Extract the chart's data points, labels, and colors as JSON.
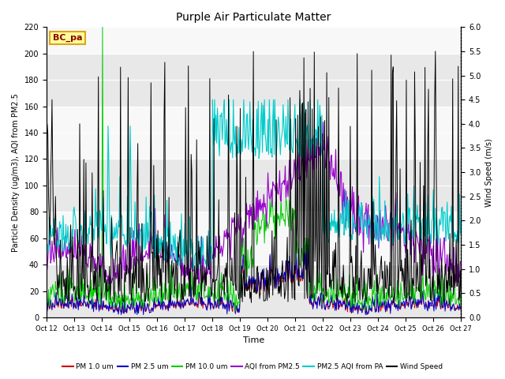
{
  "title": "Purple Air Particulate Matter",
  "ylabel_left": "Particle Density (ug/m3), AQI from PM2.5",
  "ylabel_right": "Wind Speed (m/s)",
  "xlabel": "Time",
  "ylim_left": [
    0,
    220
  ],
  "ylim_right": [
    0.0,
    6.0
  ],
  "yticks_left": [
    0,
    20,
    40,
    60,
    80,
    100,
    120,
    140,
    160,
    180,
    200,
    220
  ],
  "yticks_right": [
    0.0,
    0.5,
    1.0,
    1.5,
    2.0,
    2.5,
    3.0,
    3.5,
    4.0,
    4.5,
    5.0,
    5.5,
    6.0
  ],
  "xtick_labels": [
    "Oct 12",
    "Oct 13",
    "Oct 14",
    "Oct 15",
    "Oct 16",
    "Oct 17",
    "Oct 18",
    "Oct 19",
    "Oct 20",
    "Oct 21",
    "Oct 22",
    "Oct 23",
    "Oct 24",
    "Oct 25",
    "Oct 26",
    "Oct 27"
  ],
  "annotation_text": "BC_pa",
  "annotation_color": "#8B0000",
  "annotation_bg": "#FFFF99",
  "annotation_border": "#DAA520",
  "colors": {
    "pm1": "#CC0000",
    "pm25": "#0000CC",
    "pm10": "#00CC00",
    "aqi_pm25": "#9900CC",
    "aqi_pa": "#00CCCC",
    "wind": "#000000"
  },
  "legend_labels": [
    "PM 1.0 um",
    "PM 2.5 um",
    "PM 10.0 um",
    "AQI from PM2.5",
    "PM2.5 AQI from PA",
    "Wind Speed"
  ],
  "background_bands": [
    [
      0,
      40,
      "#e8e8e8"
    ],
    [
      40,
      80,
      "#f8f8f8"
    ],
    [
      80,
      120,
      "#e8e8e8"
    ],
    [
      120,
      160,
      "#f8f8f8"
    ],
    [
      160,
      200,
      "#e8e8e8"
    ],
    [
      200,
      220,
      "#f8f8f8"
    ]
  ]
}
